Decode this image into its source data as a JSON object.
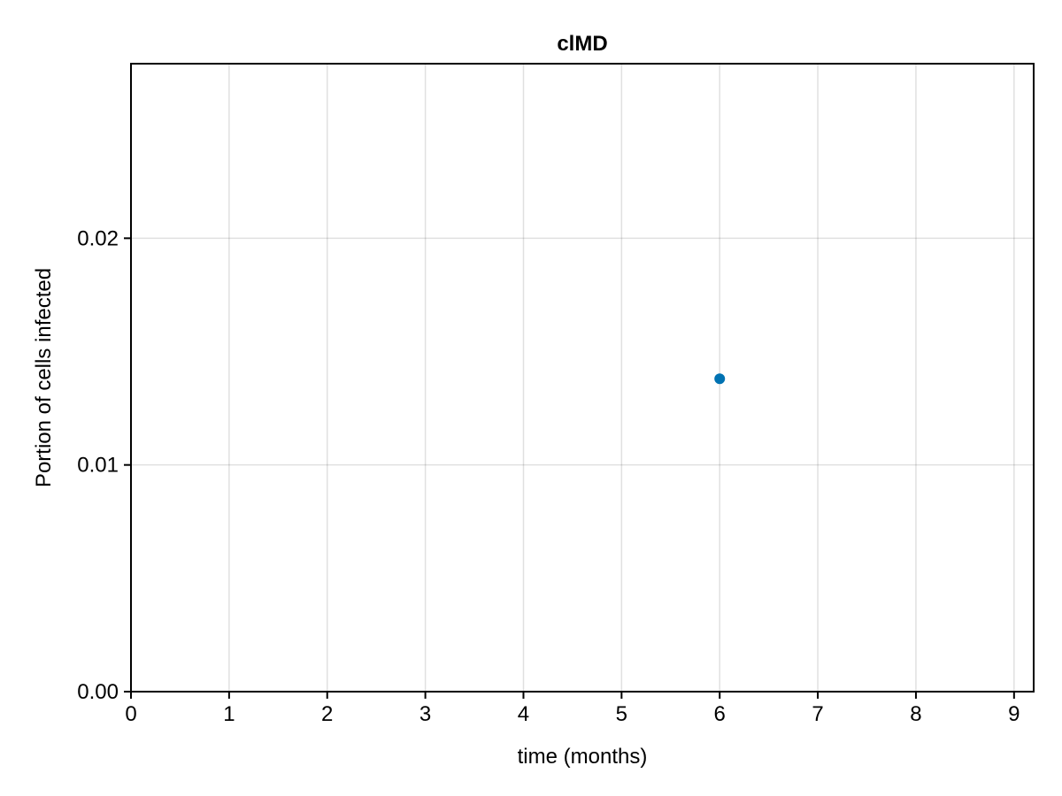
{
  "chart_data": {
    "type": "scatter",
    "title": "clMD",
    "xlabel": "time (months)",
    "ylabel": "Portion of cells infected",
    "xlim": [
      0,
      9.2
    ],
    "ylim": [
      0,
      0.0277
    ],
    "xticks": [
      0,
      1,
      2,
      3,
      4,
      5,
      6,
      7,
      8,
      9
    ],
    "yticks": [
      0.0,
      0.01,
      0.02
    ],
    "ytick_labels": [
      "0.00",
      "0.01",
      "0.02"
    ],
    "grid": true,
    "series": [
      {
        "color": "#0072b2",
        "points": [
          {
            "x": 6,
            "y": 0.0138
          }
        ]
      }
    ]
  }
}
